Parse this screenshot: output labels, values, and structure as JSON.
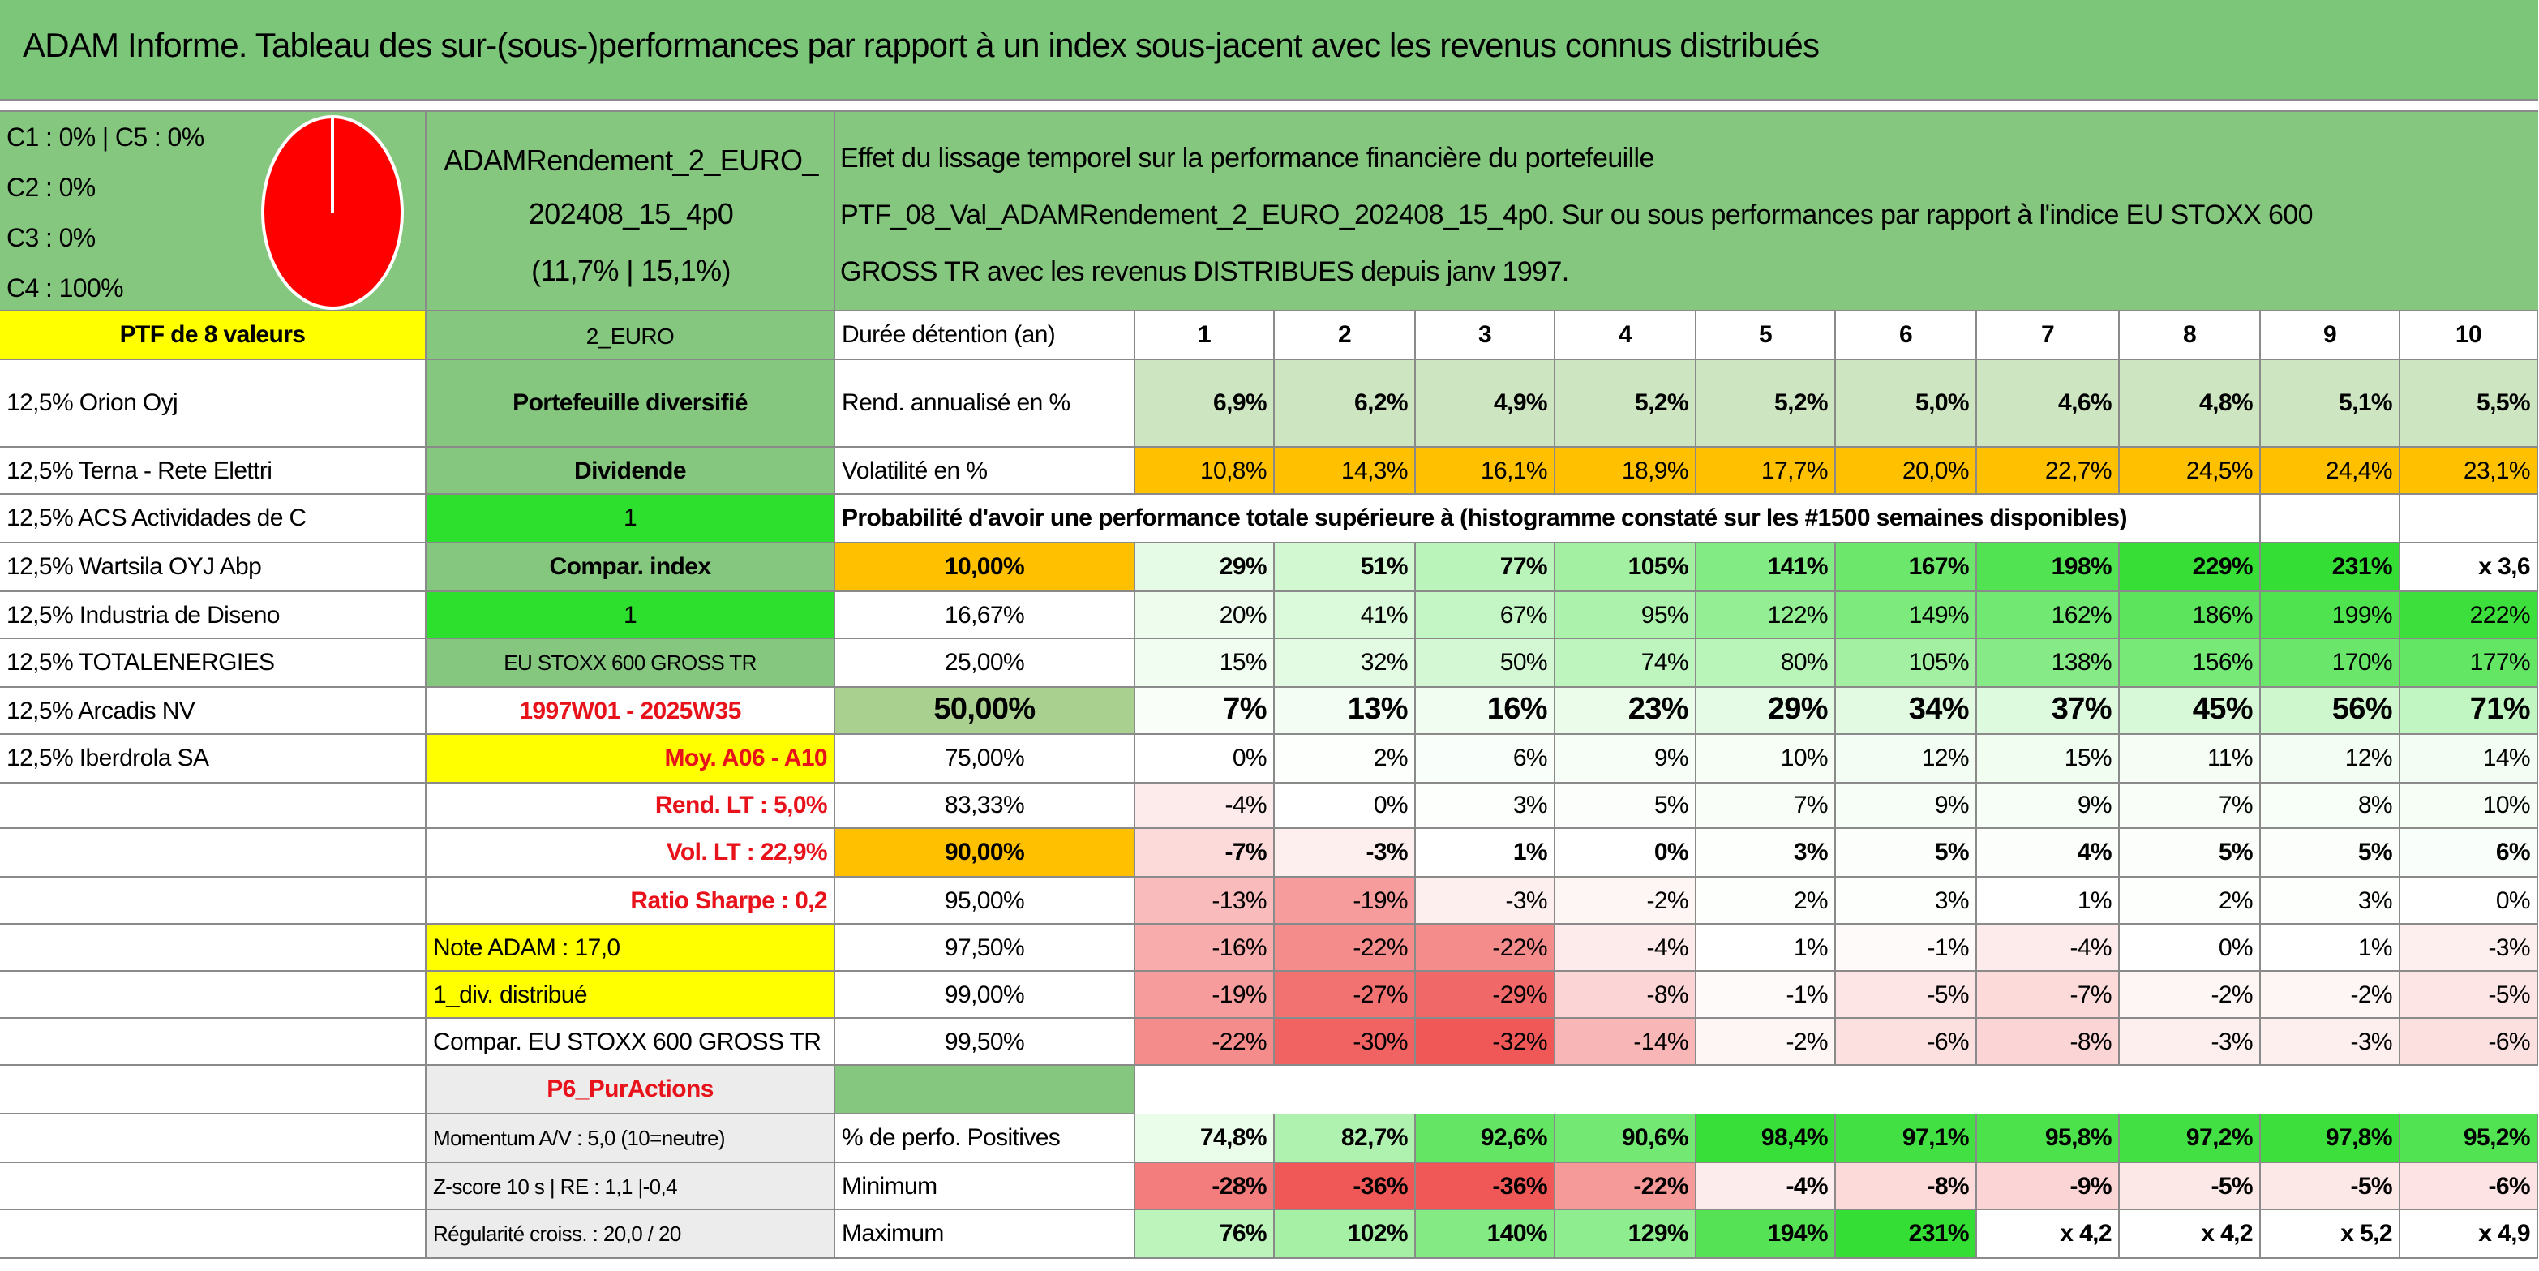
{
  "title": "ADAM Informe. Tableau des sur-(sous-)performances par rapport à un index sous-jacent avec les revenus connus distribués",
  "header": {
    "allocation": [
      "C1 : 0% | C5 : 0%",
      "C2 : 0%",
      "C3 : 0%",
      "C4 : 100%"
    ],
    "portfolio": [
      "ADAMRendement_2_EURO_",
      "202408_15_4p0",
      "(11,7% | 15,1%)"
    ],
    "description": [
      "Effet du lissage temporel sur la performance financière du portefeuille",
      "PTF_08_Val_ADAMRendement_2_EURO_202408_15_4p0. Sur ou sous performances par rapport à l'indice EU STOXX 600",
      "GROSS TR avec les revenus DISTRIBUES depuis janv 1997."
    ]
  },
  "table": {
    "rows": [
      [
        "PTF de 8 valeurs",
        "2_EURO",
        "Durée détention (an)",
        "1",
        "2",
        "3",
        "4",
        "5",
        "6",
        "7",
        "8",
        "9",
        "10"
      ],
      [
        "12,5% Orion Oyj",
        "Portefeuille diversifié",
        "Rend. annualisé en %",
        "6,9%",
        "6,2%",
        "4,9%",
        "5,2%",
        "5,2%",
        "5,0%",
        "4,6%",
        "4,8%",
        "5,1%",
        "5,5%"
      ],
      [
        "12,5% Terna - Rete Elettri",
        "Dividende",
        "Volatilité en %",
        "10,8%",
        "14,3%",
        "16,1%",
        "18,9%",
        "17,7%",
        "20,0%",
        "22,7%",
        "24,5%",
        "24,4%",
        "23,1%"
      ],
      [
        "12,5% ACS Actividades de C",
        "1",
        "Probabilité d'avoir une performance totale supérieure à (histogramme constaté sur les #1500 semaines disponibles)",
        null,
        null,
        null,
        null,
        null,
        null,
        null,
        null,
        null,
        null
      ],
      [
        "12,5% Wartsila OYJ Abp",
        "Compar. index",
        "10,00%",
        "29%",
        "51%",
        "77%",
        "105%",
        "141%",
        "167%",
        "198%",
        "229%",
        "231%",
        "x 3,6"
      ],
      [
        "12,5% Industria de Diseno",
        "1",
        "16,67%",
        "20%",
        "41%",
        "67%",
        "95%",
        "122%",
        "149%",
        "162%",
        "186%",
        "199%",
        "222%"
      ],
      [
        "12,5% TOTALENERGIES",
        "EU STOXX 600 GROSS TR",
        "25,00%",
        "15%",
        "32%",
        "50%",
        "74%",
        "80%",
        "105%",
        "138%",
        "156%",
        "170%",
        "177%"
      ],
      [
        "12,5% Arcadis NV",
        "1997W01 - 2025W35",
        "50,00%",
        "7%",
        "13%",
        "16%",
        "23%",
        "29%",
        "34%",
        "37%",
        "45%",
        "56%",
        "71%"
      ],
      [
        "12,5% Iberdrola SA",
        "Moy. A06 - A10",
        "75,00%",
        "0%",
        "2%",
        "6%",
        "9%",
        "10%",
        "12%",
        "15%",
        "11%",
        "12%",
        "14%"
      ],
      [
        null,
        "Rend. LT : 5,0%",
        "83,33%",
        "-4%",
        "0%",
        "3%",
        "5%",
        "7%",
        "9%",
        "9%",
        "7%",
        "8%",
        "10%"
      ],
      [
        null,
        "Vol. LT : 22,9%",
        "90,00%",
        "-7%",
        "-3%",
        "1%",
        "0%",
        "3%",
        "5%",
        "4%",
        "5%",
        "5%",
        "6%"
      ],
      [
        null,
        "Ratio Sharpe : 0,2",
        "95,00%",
        "-13%",
        "-19%",
        "-3%",
        "-2%",
        "2%",
        "3%",
        "1%",
        "2%",
        "3%",
        "0%"
      ],
      [
        null,
        "Note ADAM : 17,0",
        "97,50%",
        "-16%",
        "-22%",
        "-22%",
        "-4%",
        "1%",
        "-1%",
        "-4%",
        "0%",
        "1%",
        "-3%"
      ],
      [
        null,
        "1_div. distribué",
        "99,00%",
        "-19%",
        "-27%",
        "-29%",
        "-8%",
        "-1%",
        "-5%",
        "-7%",
        "-2%",
        "-2%",
        "-5%"
      ],
      [
        null,
        "Compar. EU STOXX 600 GROSS TR",
        "99,50%",
        "-22%",
        "-30%",
        "-32%",
        "-14%",
        "-2%",
        "-6%",
        "-8%",
        "-3%",
        "-3%",
        "-6%"
      ],
      [
        null,
        "P6_PurActions",
        null,
        null,
        null,
        null,
        null,
        null,
        null,
        null,
        null,
        null,
        null
      ],
      [
        null,
        "Momentum A/V : 5,0 (10=neutre)",
        "% de perfo. Positives",
        "74,8%",
        "82,7%",
        "92,6%",
        "90,6%",
        "98,4%",
        "97,1%",
        "95,8%",
        "97,2%",
        "97,8%",
        "95,2%"
      ],
      [
        null,
        "Z-score 10 s | RE : 1,1 |-0,4",
        "Minimum",
        "-28%",
        "-36%",
        "-36%",
        "-22%",
        "-4%",
        "-8%",
        "-9%",
        "-5%",
        "-5%",
        "-6%"
      ],
      [
        null,
        "Régularité croiss. : 20,0 / 20",
        "Maximum",
        "76%",
        "102%",
        "140%",
        "129%",
        "194%",
        "231%",
        "x 4,2",
        "x 4,2",
        "x 5,2",
        "x 4,9"
      ]
    ]
  }
}
